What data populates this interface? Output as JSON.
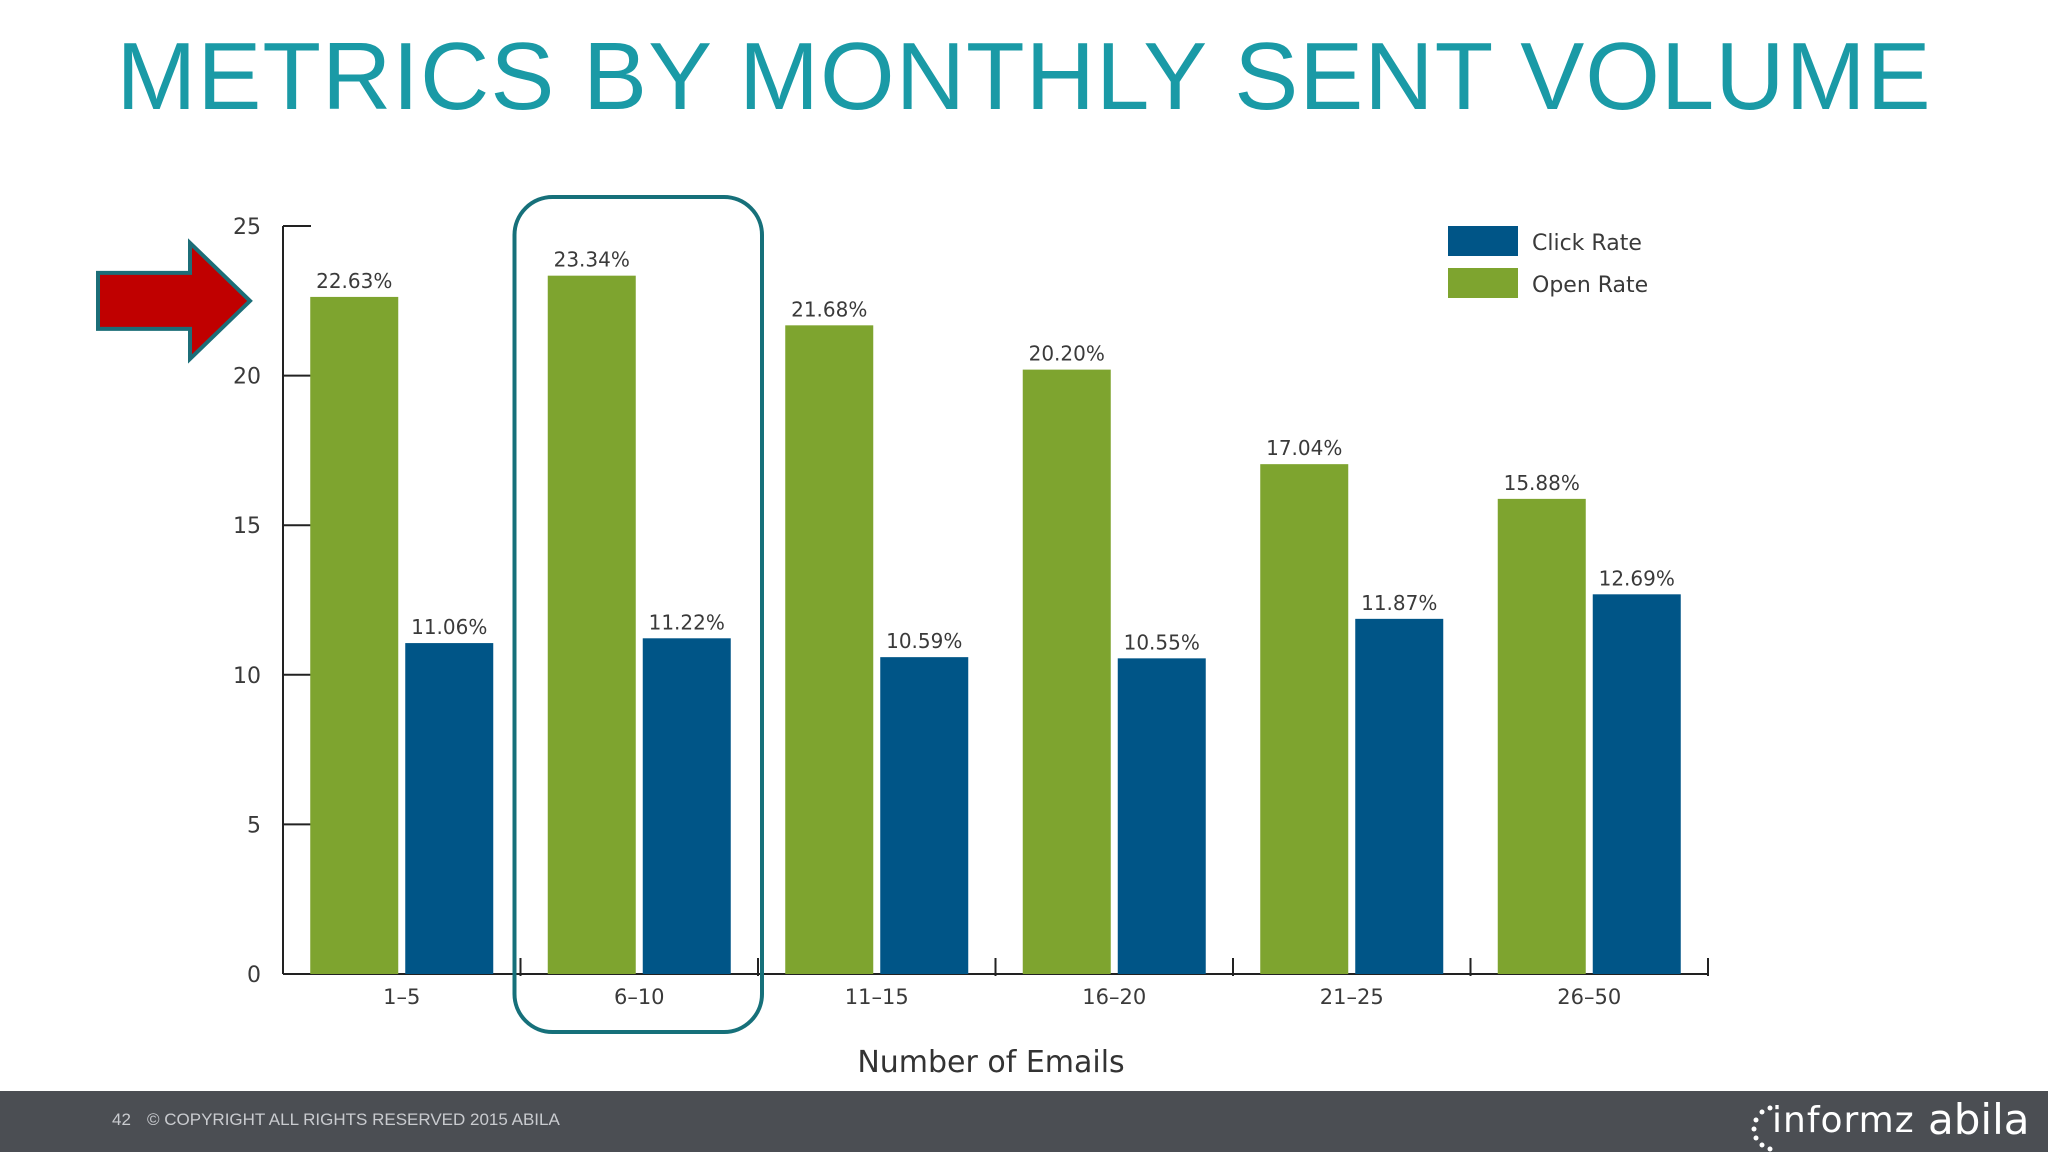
{
  "slide": {
    "title": "METRICS BY MONTHLY SENT VOLUME"
  },
  "chart_data": {
    "type": "bar",
    "categories": [
      "1–5",
      "6–10",
      "11–15",
      "16–20",
      "21–25",
      "26–50"
    ],
    "series": [
      {
        "name": "Open Rate",
        "color": "#7ea42f",
        "values": [
          22.63,
          23.34,
          21.68,
          20.2,
          17.04,
          15.88
        ],
        "labels": [
          "22.63%",
          "23.34%",
          "21.68%",
          "20.20%",
          "17.04%",
          "15.88%"
        ]
      },
      {
        "name": "Click Rate",
        "color": "#005587",
        "values": [
          11.06,
          11.22,
          10.59,
          10.55,
          11.87,
          12.69
        ],
        "labels": [
          "11.06%",
          "11.22%",
          "10.59%",
          "10.55%",
          "11.87%",
          "12.69%"
        ]
      }
    ],
    "legend": [
      {
        "name": "Click Rate",
        "color": "#005587"
      },
      {
        "name": "Open Rate",
        "color": "#7ea42f"
      }
    ],
    "legend_position": "top-right",
    "xlabel": "Number of Emails",
    "ylabel": "",
    "ylim": [
      0,
      25
    ],
    "yticks": [
      0,
      5,
      10,
      15,
      20,
      25
    ],
    "grid": false,
    "highlighted_category": "6–10",
    "highlight_color": "#16707a"
  },
  "annotation": {
    "arrow_icon": "red-right-arrow-icon",
    "arrow_color": "#c00000",
    "arrow_border": "#1c6e78",
    "points_to_y": 22.63
  },
  "footer": {
    "page_number": "42",
    "copyright": "© COPYRIGHT ALL RIGHTS RESERVED 2015 ABILA",
    "logo_informz": "informz",
    "logo_abila": "abila"
  }
}
